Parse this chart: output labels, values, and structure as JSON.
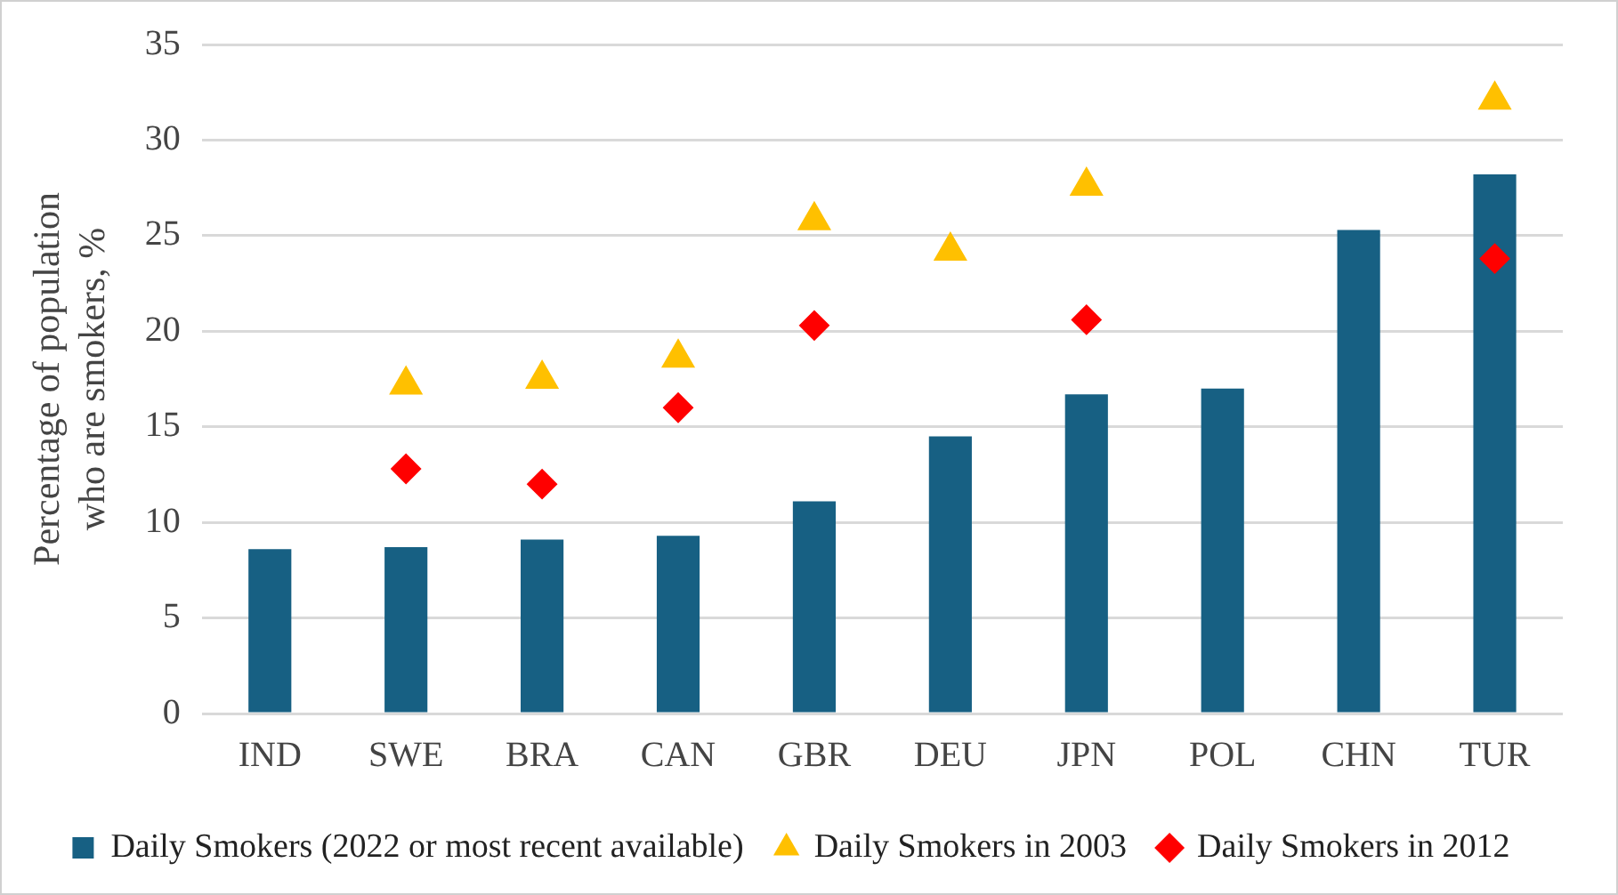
{
  "chart_data": {
    "type": "bar",
    "ylabel": "Percentage of population who are smokers, %",
    "categories": [
      "IND",
      "SWE",
      "BRA",
      "CAN",
      "GBR",
      "DEU",
      "JPN",
      "POL",
      "CHN",
      "TUR"
    ],
    "series": [
      {
        "name": "Daily Smokers (2022 or most recent available)",
        "color": "#176083",
        "values": [
          8.6,
          8.7,
          9.1,
          9.3,
          11.1,
          14.5,
          16.7,
          17.0,
          25.3,
          28.2
        ]
      },
      {
        "name": "Daily Smokers in 2003",
        "type": "scatter",
        "marker": "triangle",
        "color": "#ffc000",
        "values": [
          null,
          17.2,
          17.5,
          18.6,
          25.8,
          24.2,
          27.6,
          null,
          null,
          32.1
        ]
      },
      {
        "name": "Daily Smokers in 2012",
        "type": "scatter",
        "marker": "diamond",
        "color": "#ff0000",
        "values": [
          null,
          12.8,
          12.0,
          16.0,
          20.3,
          null,
          20.6,
          null,
          null,
          23.8
        ]
      }
    ],
    "ylim": [
      0,
      35
    ],
    "yticks": [
      0,
      5,
      10,
      15,
      20,
      25,
      30,
      35
    ],
    "grid": "y",
    "legend": "bottom"
  }
}
